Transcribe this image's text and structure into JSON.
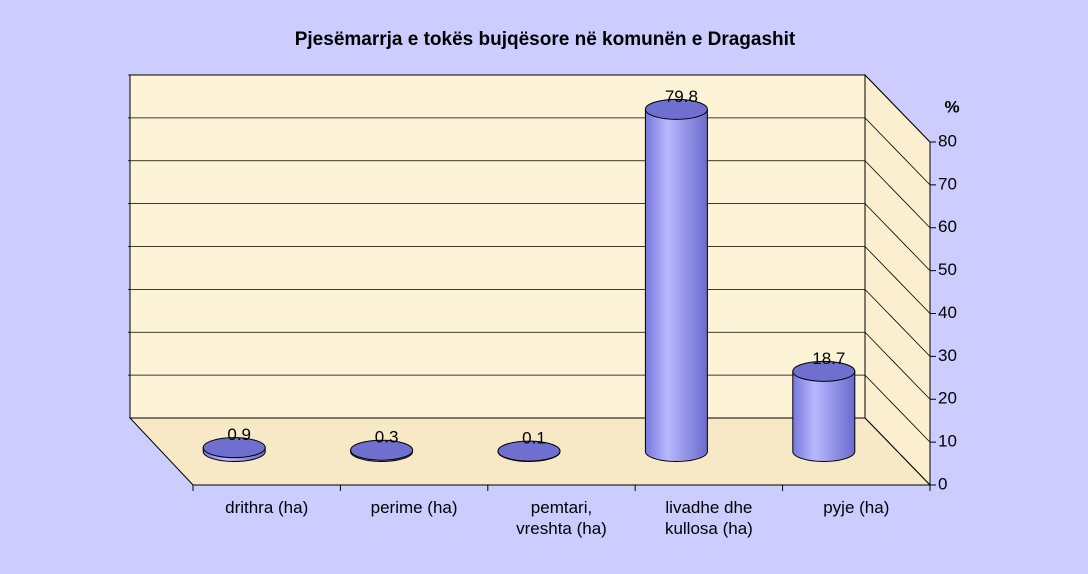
{
  "chart_data": {
    "type": "bar",
    "title": "Pjesëmarrja e tokës bujqësore në komunën e Dragashit",
    "ylabel": "%",
    "categories": [
      "drithra (ha)",
      "perime (ha)",
      "pemtari, vreshta (ha)",
      "livadhe dhe kullosa (ha)",
      "pyje (ha)"
    ],
    "values": [
      0.9,
      0.3,
      0.1,
      79.8,
      18.7
    ],
    "color": "#9999ff",
    "ylim": [
      0,
      80
    ],
    "yticks": [
      0,
      10,
      20,
      30,
      40,
      50,
      60,
      70,
      80
    ],
    "grid": true
  }
}
